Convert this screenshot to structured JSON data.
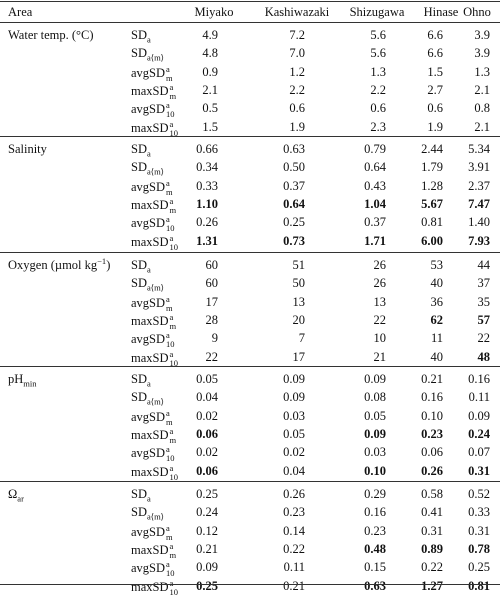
{
  "table": {
    "header": [
      "Area",
      "Miyako",
      "Kashiwazaki",
      "Shizugawa",
      "Hinase",
      "Ohno"
    ],
    "groups": [
      {
        "area": [
          "Water temp. (°C)"
        ],
        "rows": [
          {
            "label": [
              "SD",
              {
                "sub": "a"
              }
            ],
            "values": [
              "4.9",
              "7.2",
              "5.6",
              "6.6",
              "3.9"
            ]
          },
          {
            "label": [
              "SD",
              {
                "sub": "a⟨m⟩"
              }
            ],
            "values": [
              "4.8",
              "7.0",
              "5.6",
              "6.6",
              "3.9"
            ]
          },
          {
            "label": [
              "avgSD",
              {
                "sup": "a",
                "sub": "m"
              }
            ],
            "values": [
              "0.9",
              "1.2",
              "1.3",
              "1.5",
              "1.3"
            ]
          },
          {
            "label": [
              "maxSD",
              {
                "sup": "a",
                "sub": "m"
              }
            ],
            "values": [
              "2.1",
              "2.2",
              "2.2",
              "2.7",
              "2.1"
            ]
          },
          {
            "label": [
              "avgSD",
              {
                "sup": "a",
                "sub": "10"
              }
            ],
            "values": [
              "0.5",
              "0.6",
              "0.6",
              "0.6",
              "0.8"
            ]
          },
          {
            "label": [
              "maxSD",
              {
                "sup": "a",
                "sub": "10"
              }
            ],
            "values": [
              "1.5",
              "1.9",
              "2.3",
              "1.9",
              "2.1"
            ]
          }
        ]
      },
      {
        "area": [
          "Salinity"
        ],
        "rows": [
          {
            "label": [
              "SD",
              {
                "sub": "a"
              }
            ],
            "values": [
              "0.66",
              "0.63",
              "0.79",
              "2.44",
              "5.34"
            ]
          },
          {
            "label": [
              "SD",
              {
                "sub": "a⟨m⟩"
              }
            ],
            "values": [
              "0.34",
              "0.50",
              "0.64",
              "1.79",
              "3.91"
            ]
          },
          {
            "label": [
              "avgSD",
              {
                "sup": "a",
                "sub": "m"
              }
            ],
            "values": [
              "0.33",
              "0.37",
              "0.43",
              "1.28",
              "2.37"
            ]
          },
          {
            "label": [
              "maxSD",
              {
                "sup": "a",
                "sub": "m"
              }
            ],
            "values": [
              "1.10",
              "0.64",
              "1.04",
              "5.67",
              "7.47"
            ],
            "bold": [
              0,
              1,
              2,
              3,
              4
            ]
          },
          {
            "label": [
              "avgSD",
              {
                "sup": "a",
                "sub": "10"
              }
            ],
            "values": [
              "0.26",
              "0.25",
              "0.37",
              "0.81",
              "1.40"
            ]
          },
          {
            "label": [
              "maxSD",
              {
                "sup": "a",
                "sub": "10"
              }
            ],
            "values": [
              "1.31",
              "0.73",
              "1.71",
              "6.00",
              "7.93"
            ],
            "bold": [
              0,
              1,
              2,
              3,
              4
            ]
          }
        ]
      },
      {
        "area": [
          "Oxygen (µmol kg",
          {
            "sup": "−1"
          },
          ")"
        ],
        "rows": [
          {
            "label": [
              "SD",
              {
                "sub": "a"
              }
            ],
            "values": [
              "60",
              "51",
              "26",
              "53",
              "44"
            ]
          },
          {
            "label": [
              "SD",
              {
                "sub": "a⟨m⟩"
              }
            ],
            "values": [
              "60",
              "50",
              "26",
              "40",
              "37"
            ]
          },
          {
            "label": [
              "avgSD",
              {
                "sup": "a",
                "sub": "m"
              }
            ],
            "values": [
              "17",
              "13",
              "13",
              "36",
              "35"
            ]
          },
          {
            "label": [
              "maxSD",
              {
                "sup": "a",
                "sub": "m"
              }
            ],
            "values": [
              "28",
              "20",
              "22",
              "62",
              "57"
            ],
            "bold": [
              3,
              4
            ]
          },
          {
            "label": [
              "avgSD",
              {
                "sup": "a",
                "sub": "10"
              }
            ],
            "values": [
              "9",
              "7",
              "10",
              "11",
              "22"
            ]
          },
          {
            "label": [
              "maxSD",
              {
                "sup": "a",
                "sub": "10"
              }
            ],
            "values": [
              "22",
              "17",
              "21",
              "40",
              "48"
            ],
            "bold": [
              4
            ]
          }
        ]
      },
      {
        "area": [
          "pH",
          {
            "sub": "min"
          }
        ],
        "rows": [
          {
            "label": [
              "SD",
              {
                "sub": "a"
              }
            ],
            "values": [
              "0.05",
              "0.09",
              "0.09",
              "0.21",
              "0.16"
            ]
          },
          {
            "label": [
              "SD",
              {
                "sub": "a⟨m⟩"
              }
            ],
            "values": [
              "0.04",
              "0.09",
              "0.08",
              "0.16",
              "0.11"
            ]
          },
          {
            "label": [
              "avgSD",
              {
                "sup": "a",
                "sub": "m"
              }
            ],
            "values": [
              "0.02",
              "0.03",
              "0.05",
              "0.10",
              "0.09"
            ]
          },
          {
            "label": [
              "maxSD",
              {
                "sup": "a",
                "sub": "m"
              }
            ],
            "values": [
              "0.06",
              "0.05",
              "0.09",
              "0.23",
              "0.24"
            ],
            "bold": [
              0,
              2,
              3,
              4
            ]
          },
          {
            "label": [
              "avgSD",
              {
                "sup": "a",
                "sub": "10"
              }
            ],
            "values": [
              "0.02",
              "0.02",
              "0.03",
              "0.06",
              "0.07"
            ]
          },
          {
            "label": [
              "maxSD",
              {
                "sup": "a",
                "sub": "10"
              }
            ],
            "values": [
              "0.06",
              "0.04",
              "0.10",
              "0.26",
              "0.31"
            ],
            "bold": [
              0,
              2,
              3,
              4
            ]
          }
        ]
      },
      {
        "area": [
          "Ω",
          {
            "sub": "ar"
          }
        ],
        "rows": [
          {
            "label": [
              "SD",
              {
                "sub": "a"
              }
            ],
            "values": [
              "0.25",
              "0.26",
              "0.29",
              "0.58",
              "0.52"
            ]
          },
          {
            "label": [
              "SD",
              {
                "sub": "a⟨m⟩"
              }
            ],
            "values": [
              "0.24",
              "0.23",
              "0.16",
              "0.41",
              "0.33"
            ]
          },
          {
            "label": [
              "avgSD",
              {
                "sup": "a",
                "sub": "m"
              }
            ],
            "values": [
              "0.12",
              "0.14",
              "0.23",
              "0.31",
              "0.31"
            ]
          },
          {
            "label": [
              "maxSD",
              {
                "sup": "a",
                "sub": "m"
              }
            ],
            "values": [
              "0.21",
              "0.22",
              "0.48",
              "0.89",
              "0.78"
            ],
            "bold": [
              2,
              3,
              4
            ]
          },
          {
            "label": [
              "avgSD",
              {
                "sup": "a",
                "sub": "10"
              }
            ],
            "values": [
              "0.09",
              "0.11",
              "0.15",
              "0.22",
              "0.25"
            ]
          },
          {
            "label": [
              "maxSD",
              {
                "sup": "a",
                "sub": "10"
              }
            ],
            "values": [
              "0.25",
              "0.21",
              "0.63",
              "1.27",
              "0.81"
            ],
            "bold": [
              0,
              2,
              3,
              4
            ]
          }
        ]
      }
    ]
  }
}
